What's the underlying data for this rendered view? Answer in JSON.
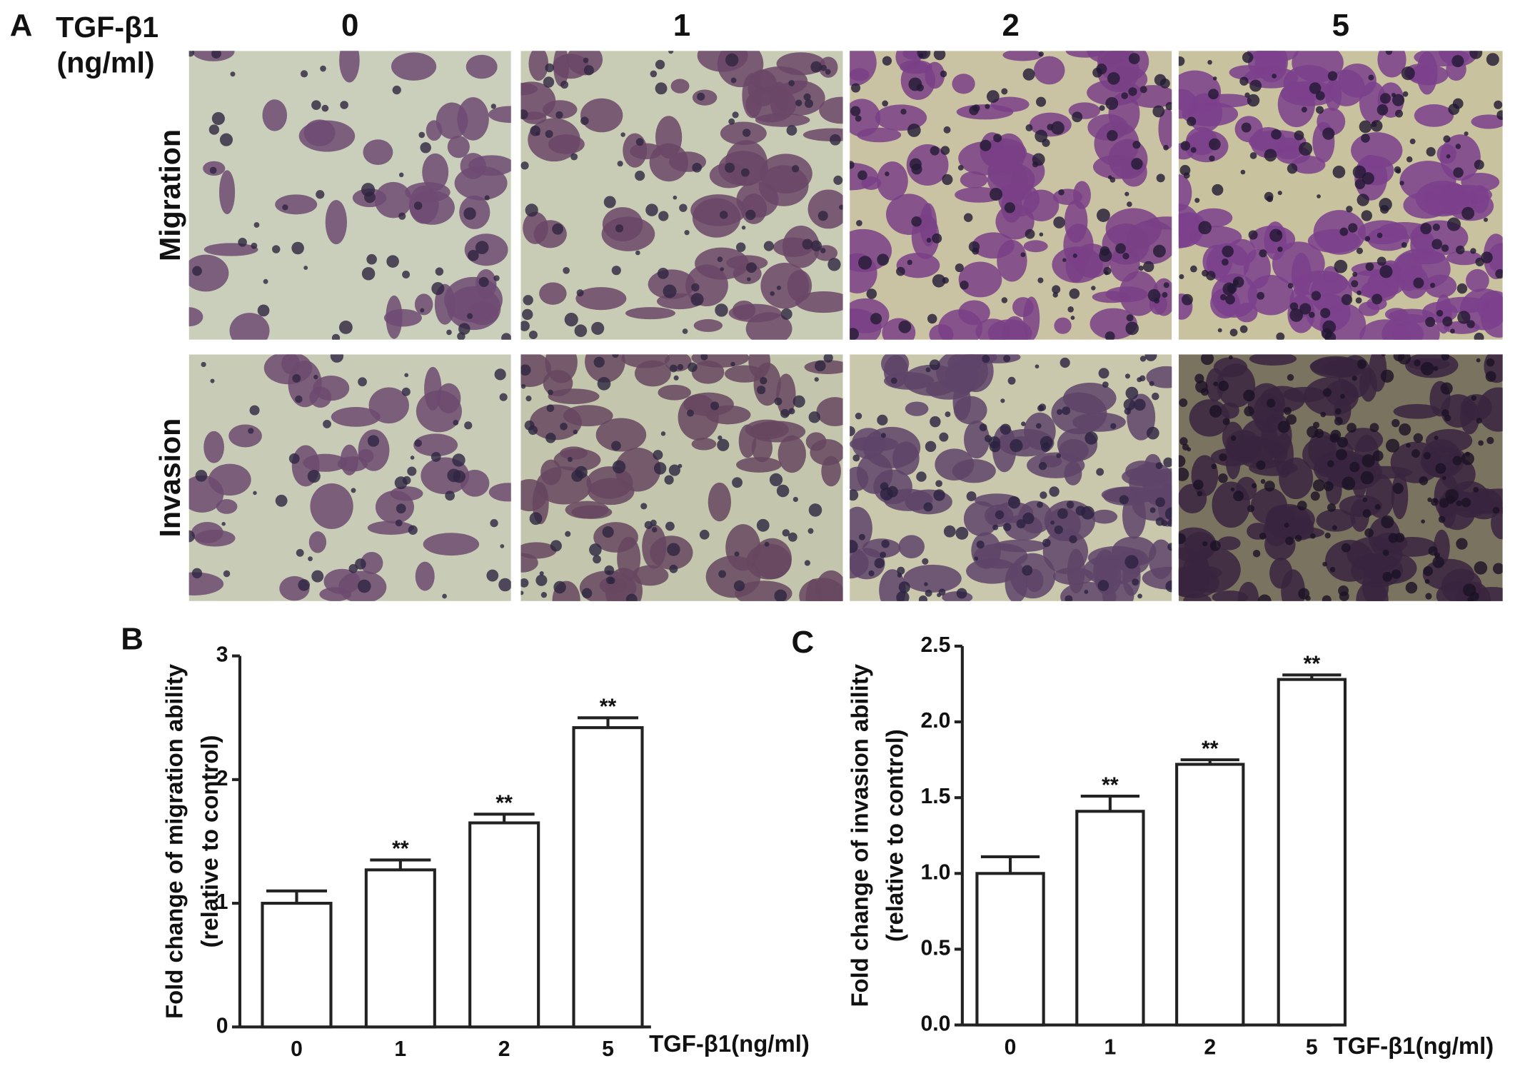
{
  "panel_a": {
    "label": "A",
    "treatment_label": "TGF-β1",
    "unit_label": "(ng/ml)",
    "doses": [
      "0",
      "1",
      "2",
      "5"
    ],
    "rows": [
      "Migration",
      "Invasion"
    ]
  },
  "chart_data": [
    {
      "type": "bar",
      "panel": "B",
      "ylabel": "Fold change of migration ability",
      "ylabel_sub": "(relative to control)",
      "xlabel": "TGF-β1(ng/ml)",
      "categories": [
        "0",
        "1",
        "2",
        "5"
      ],
      "values": [
        1.0,
        1.27,
        1.65,
        2.42
      ],
      "errors": [
        0.1,
        0.08,
        0.07,
        0.08
      ],
      "annotations": [
        null,
        "**",
        "**",
        "**"
      ],
      "color": "#ffffff",
      "ylim": [
        0,
        3
      ],
      "yticks": [
        0,
        1,
        2,
        3
      ]
    },
    {
      "type": "bar",
      "panel": "C",
      "ylabel": "Fold change of invasion ability",
      "ylabel_sub": "(relative to control)",
      "xlabel": "TGF-β1(ng/ml)",
      "categories": [
        "0",
        "1",
        "2",
        "5"
      ],
      "values": [
        1.0,
        1.41,
        1.72,
        2.28
      ],
      "errors": [
        0.11,
        0.1,
        0.03,
        0.03
      ],
      "annotations": [
        null,
        "**",
        "**",
        "**"
      ],
      "color": "#ffffff",
      "ylim": [
        0,
        2.5
      ],
      "yticks": [
        {
          "value": 0,
          "label": "0.0"
        },
        0.5,
        {
          "value": 1,
          "label": "1.0"
        },
        1.5,
        {
          "value": 2,
          "label": "2.0"
        },
        2.5
      ]
    }
  ]
}
